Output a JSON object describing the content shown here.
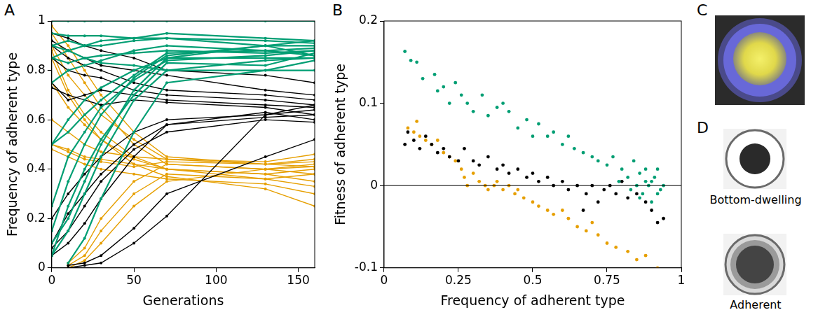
{
  "chart_data": [
    {
      "panel_label": "A",
      "type": "line",
      "x_label": "Generations",
      "y_label": "Frequency of adherent type",
      "x": [
        0,
        10,
        20,
        30,
        50,
        70,
        130,
        160
      ],
      "xlim": [
        0,
        160
      ],
      "xticks": [
        0,
        50,
        100,
        150
      ],
      "ylim": [
        0,
        1
      ],
      "yticks": [
        0,
        0.2,
        0.4,
        0.6,
        0.8,
        1
      ],
      "grid": false,
      "marker": "circle",
      "series": [
        {
          "color": "#009e73",
          "values": [
            1,
            1,
            1,
            1,
            1,
            1,
            1,
            1
          ]
        },
        {
          "color": "#009e73",
          "values": [
            0.95,
            0.94,
            0.94,
            0.94,
            0.93,
            0.93,
            0.92,
            0.91
          ]
        },
        {
          "color": "#009e73",
          "values": [
            0.9,
            0.92,
            0.9,
            0.92,
            0.93,
            0.95,
            0.93,
            0.92
          ]
        },
        {
          "color": "#009e73",
          "values": [
            0.85,
            0.88,
            0.9,
            0.9,
            0.92,
            0.93,
            0.9,
            0.9
          ]
        },
        {
          "color": "#009e73",
          "values": [
            0.85,
            0.83,
            0.85,
            0.86,
            0.87,
            0.88,
            0.87,
            0.88
          ]
        },
        {
          "color": "#009e73",
          "values": [
            0.75,
            0.8,
            0.82,
            0.84,
            0.88,
            0.9,
            0.88,
            0.86
          ]
        },
        {
          "color": "#009e73",
          "values": [
            0.5,
            0.6,
            0.68,
            0.73,
            0.8,
            0.85,
            0.85,
            0.85
          ]
        },
        {
          "color": "#009e73",
          "values": [
            0.5,
            0.55,
            0.62,
            0.68,
            0.78,
            0.87,
            0.88,
            0.89
          ]
        },
        {
          "color": "#009e73",
          "values": [
            0.25,
            0.45,
            0.55,
            0.65,
            0.76,
            0.84,
            0.86,
            0.88
          ]
        },
        {
          "color": "#009e73",
          "values": [
            0.15,
            0.35,
            0.5,
            0.62,
            0.77,
            0.86,
            0.9,
            0.86
          ]
        },
        {
          "color": "#009e73",
          "values": [
            0.05,
            0.25,
            0.4,
            0.52,
            0.7,
            0.83,
            0.82,
            0.87
          ]
        },
        {
          "color": "#009e73",
          "values": [
            0.05,
            0.15,
            0.3,
            0.45,
            0.68,
            0.8,
            0.84,
            0.85
          ]
        },
        {
          "color": "#009e73",
          "values": [
            null,
            0.02,
            0.12,
            0.28,
            0.55,
            0.75,
            0.8,
            0.84
          ]
        },
        {
          "color": "#009e73",
          "values": [
            0.1,
            0.2,
            0.35,
            0.5,
            0.72,
            0.85,
            0.9,
            0.92
          ]
        },
        {
          "color": "#009e73",
          "values": [
            0.9,
            0.88,
            0.85,
            0.83,
            0.82,
            0.8,
            0.8,
            0.8
          ]
        },
        {
          "color": "#000000",
          "values": [
            0.95,
            0.93,
            0.9,
            0.88,
            0.85,
            0.8,
            0.78,
            0.75
          ]
        },
        {
          "color": "#000000",
          "values": [
            0.92,
            0.88,
            0.85,
            0.82,
            0.8,
            0.78,
            0.72,
            0.7
          ]
        },
        {
          "color": "#000000",
          "values": [
            0.9,
            0.85,
            0.82,
            0.8,
            0.75,
            0.72,
            0.7,
            0.68
          ]
        },
        {
          "color": "#000000",
          "values": [
            0.85,
            0.8,
            0.78,
            0.77,
            0.72,
            0.7,
            0.68,
            0.66
          ]
        },
        {
          "color": "#000000",
          "values": [
            0.75,
            0.68,
            0.7,
            0.72,
            0.7,
            0.68,
            0.66,
            0.65
          ]
        },
        {
          "color": "#000000",
          "values": [
            0.73,
            0.7,
            0.68,
            0.66,
            0.68,
            0.67,
            0.65,
            0.62
          ]
        },
        {
          "color": "#000000",
          "values": [
            0.2,
            0.3,
            0.38,
            0.45,
            0.55,
            0.6,
            0.62,
            0.64
          ]
        },
        {
          "color": "#000000",
          "values": [
            0.1,
            0.22,
            0.3,
            0.38,
            0.5,
            0.58,
            0.63,
            0.6
          ]
        },
        {
          "color": "#000000",
          "values": [
            0.05,
            0.1,
            0.18,
            0.28,
            0.45,
            0.58,
            0.61,
            0.62
          ]
        },
        {
          "color": "#000000",
          "values": [
            null,
            0.01,
            0.02,
            0.05,
            0.16,
            0.3,
            0.45,
            0.52
          ]
        },
        {
          "color": "#000000",
          "values": [
            null,
            0.0,
            0.01,
            0.02,
            0.1,
            0.21,
            0.62,
            0.66
          ]
        },
        {
          "color": "#000000",
          "values": [
            0.08,
            0.15,
            0.25,
            0.35,
            0.48,
            0.55,
            0.6,
            0.59
          ]
        },
        {
          "color": "#e69f00",
          "values": [
            0.98,
            0.9,
            0.8,
            0.7,
            0.55,
            0.45,
            0.42,
            0.43
          ]
        },
        {
          "color": "#e69f00",
          "values": [
            0.95,
            0.85,
            0.75,
            0.65,
            0.5,
            0.42,
            0.4,
            0.38
          ]
        },
        {
          "color": "#e69f00",
          "values": [
            0.9,
            0.78,
            0.7,
            0.62,
            0.52,
            0.44,
            0.43,
            0.46
          ]
        },
        {
          "color": "#e69f00",
          "values": [
            0.88,
            0.72,
            0.62,
            0.55,
            0.45,
            0.4,
            0.38,
            0.35
          ]
        },
        {
          "color": "#e69f00",
          "values": [
            0.75,
            0.65,
            0.58,
            0.52,
            0.44,
            0.4,
            0.36,
            0.33
          ]
        },
        {
          "color": "#e69f00",
          "values": [
            0.5,
            0.48,
            0.45,
            0.44,
            0.42,
            0.4,
            0.38,
            0.4
          ]
        },
        {
          "color": "#e69f00",
          "values": [
            0.48,
            0.45,
            0.42,
            0.4,
            0.38,
            0.36,
            0.34,
            0.3
          ]
        },
        {
          "color": "#e69f00",
          "values": [
            0.5,
            0.47,
            0.44,
            0.43,
            0.41,
            0.43,
            0.42,
            0.44
          ]
        },
        {
          "color": "#e69f00",
          "values": [
            null,
            0.0,
            0.03,
            0.1,
            0.25,
            0.35,
            0.4,
            0.42
          ]
        },
        {
          "color": "#e69f00",
          "values": [
            null,
            0.01,
            0.05,
            0.15,
            0.3,
            0.38,
            0.36,
            0.38
          ]
        },
        {
          "color": "#e69f00",
          "values": [
            null,
            0.02,
            0.08,
            0.2,
            0.35,
            0.42,
            0.4,
            0.41
          ]
        },
        {
          "color": "#e69f00",
          "values": [
            0.85,
            0.7,
            0.6,
            0.52,
            0.42,
            0.37,
            0.32,
            0.25
          ]
        },
        {
          "color": "#e69f00",
          "values": [
            0.6,
            0.55,
            0.5,
            0.47,
            0.45,
            0.44,
            0.42,
            0.41
          ]
        }
      ]
    },
    {
      "panel_label": "B",
      "type": "scatter",
      "x_label": "Frequency of adherent type",
      "y_label": "Fitness of adherent type",
      "xlim": [
        0,
        1
      ],
      "xticks": [
        0,
        0.25,
        0.5,
        0.75,
        1
      ],
      "ylim": [
        -0.1,
        0.2
      ],
      "yticks": [
        -0.1,
        0,
        0.1,
        0.2
      ],
      "grid": false,
      "marker": "circle",
      "hline": 0,
      "series": [
        {
          "color": "#009e73",
          "values": [
            [
              0.07,
              0.163
            ],
            [
              0.09,
              0.152
            ],
            [
              0.11,
              0.15
            ],
            [
              0.13,
              0.13
            ],
            [
              0.17,
              0.135
            ],
            [
              0.2,
              0.12
            ],
            [
              0.18,
              0.115
            ],
            [
              0.22,
              0.1
            ],
            [
              0.24,
              0.125
            ],
            [
              0.26,
              0.11
            ],
            [
              0.28,
              0.1
            ],
            [
              0.3,
              0.09
            ],
            [
              0.33,
              0.11
            ],
            [
              0.35,
              0.085
            ],
            [
              0.38,
              0.095
            ],
            [
              0.4,
              0.1
            ],
            [
              0.42,
              0.09
            ],
            [
              0.45,
              0.07
            ],
            [
              0.48,
              0.08
            ],
            [
              0.5,
              0.06
            ],
            [
              0.52,
              0.075
            ],
            [
              0.55,
              0.06
            ],
            [
              0.57,
              0.065
            ],
            [
              0.6,
              0.05
            ],
            [
              0.62,
              0.06
            ],
            [
              0.64,
              0.045
            ],
            [
              0.67,
              0.04
            ],
            [
              0.7,
              0.035
            ],
            [
              0.72,
              0.03
            ],
            [
              0.75,
              0.025
            ],
            [
              0.77,
              0.035
            ],
            [
              0.8,
              0.02
            ],
            [
              0.82,
              0.01
            ],
            [
              0.84,
              0.03
            ],
            [
              0.85,
              0.0
            ],
            [
              0.86,
              0.015
            ],
            [
              0.87,
              -0.01
            ],
            [
              0.88,
              0.005
            ],
            [
              0.89,
              0.0
            ],
            [
              0.9,
              -0.02
            ],
            [
              0.91,
              0.01
            ],
            [
              0.92,
              0.02
            ],
            [
              0.93,
              -0.005
            ],
            [
              0.94,
              0.0
            ],
            [
              0.83,
              -0.005
            ],
            [
              0.79,
              0.005
            ],
            [
              0.88,
              0.02
            ],
            [
              0.9,
              0.005
            ],
            [
              0.86,
              -0.015
            ],
            [
              0.92,
              -0.01
            ]
          ]
        },
        {
          "color": "#000000",
          "values": [
            [
              0.07,
              0.05
            ],
            [
              0.08,
              0.065
            ],
            [
              0.1,
              0.055
            ],
            [
              0.12,
              0.045
            ],
            [
              0.14,
              0.06
            ],
            [
              0.16,
              0.05
            ],
            [
              0.18,
              0.04
            ],
            [
              0.2,
              0.045
            ],
            [
              0.22,
              0.035
            ],
            [
              0.25,
              0.03
            ],
            [
              0.27,
              0.045
            ],
            [
              0.3,
              0.03
            ],
            [
              0.32,
              0.025
            ],
            [
              0.35,
              0.035
            ],
            [
              0.38,
              0.02
            ],
            [
              0.4,
              0.025
            ],
            [
              0.42,
              0.015
            ],
            [
              0.45,
              0.02
            ],
            [
              0.48,
              0.01
            ],
            [
              0.5,
              0.015
            ],
            [
              0.52,
              0.005
            ],
            [
              0.55,
              0.01
            ],
            [
              0.57,
              0.0
            ],
            [
              0.6,
              0.005
            ],
            [
              0.62,
              -0.005
            ],
            [
              0.65,
              0.0
            ],
            [
              0.68,
              -0.01
            ],
            [
              0.7,
              0.0
            ],
            [
              0.72,
              -0.02
            ],
            [
              0.74,
              -0.005
            ],
            [
              0.76,
              0.0
            ],
            [
              0.78,
              -0.01
            ],
            [
              0.8,
              0.005
            ],
            [
              0.82,
              -0.015
            ],
            [
              0.85,
              -0.01
            ],
            [
              0.88,
              -0.02
            ],
            [
              0.9,
              -0.03
            ],
            [
              0.92,
              -0.045
            ],
            [
              0.94,
              -0.04
            ],
            [
              0.67,
              -0.03
            ]
          ]
        },
        {
          "color": "#e69f00",
          "values": [
            [
              0.08,
              0.07
            ],
            [
              0.1,
              0.065
            ],
            [
              0.11,
              0.078
            ],
            [
              0.12,
              0.06
            ],
            [
              0.14,
              0.055
            ],
            [
              0.16,
              0.05
            ],
            [
              0.18,
              0.055
            ],
            [
              0.2,
              0.04
            ],
            [
              0.22,
              0.035
            ],
            [
              0.24,
              0.03
            ],
            [
              0.26,
              0.02
            ],
            [
              0.27,
              0.01
            ],
            [
              0.28,
              0.0
            ],
            [
              0.3,
              0.015
            ],
            [
              0.32,
              0.005
            ],
            [
              0.34,
              0.0
            ],
            [
              0.35,
              -0.005
            ],
            [
              0.37,
              0.0
            ],
            [
              0.38,
              0.005
            ],
            [
              0.4,
              -0.005
            ],
            [
              0.42,
              0.0
            ],
            [
              0.44,
              -0.01
            ],
            [
              0.45,
              -0.005
            ],
            [
              0.47,
              -0.015
            ],
            [
              0.5,
              -0.02
            ],
            [
              0.52,
              -0.025
            ],
            [
              0.55,
              -0.03
            ],
            [
              0.57,
              -0.035
            ],
            [
              0.6,
              -0.03
            ],
            [
              0.62,
              -0.04
            ],
            [
              0.65,
              -0.05
            ],
            [
              0.68,
              -0.055
            ],
            [
              0.7,
              -0.045
            ],
            [
              0.72,
              -0.06
            ],
            [
              0.75,
              -0.07
            ],
            [
              0.78,
              -0.075
            ],
            [
              0.82,
              -0.08
            ],
            [
              0.85,
              -0.09
            ],
            [
              0.88,
              -0.085
            ],
            [
              0.92,
              -0.1
            ]
          ]
        }
      ]
    }
  ],
  "images": [
    {
      "panel_label": "C"
    },
    {
      "panel_label": "D",
      "captions": [
        "Bottom-dwelling",
        "Adherent"
      ]
    }
  ]
}
